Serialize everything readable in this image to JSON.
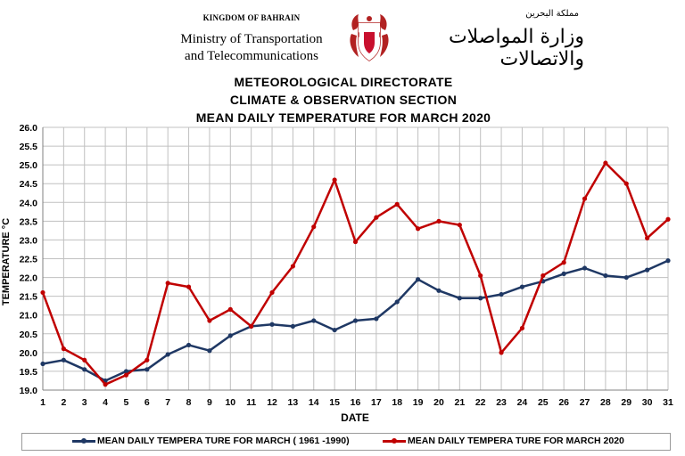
{
  "header": {
    "kingdom": "KINGDOM OF BAHRAIN",
    "ministry_line1": "Ministry of Transportation",
    "ministry_line2": "and Telecommunications",
    "arabic_small": "مملكة البحرين",
    "arabic_large": "وزارة المواصلات والاتصالات"
  },
  "titles": {
    "line1": "METEOROLOGICAL DIRECTORATE",
    "line2": "CLIMATE & OBSERVATION SECTION",
    "line3": "MEAN DAILY TEMPERATURE FOR MARCH 2020"
  },
  "colors": {
    "normal": "#1f3864",
    "year2020": "#c00000",
    "grid": "#c0c0c0"
  },
  "chart_data": {
    "type": "line",
    "title": "MEAN DAILY TEMPERATURE FOR MARCH 2020",
    "xlabel": "DATE",
    "ylabel": "TEMPERATURE °C",
    "x": [
      1,
      2,
      3,
      4,
      5,
      6,
      7,
      8,
      9,
      10,
      11,
      12,
      13,
      14,
      15,
      16,
      17,
      18,
      19,
      20,
      21,
      22,
      23,
      24,
      25,
      26,
      27,
      28,
      29,
      30,
      31
    ],
    "ylim": [
      19.0,
      26.0
    ],
    "yticks": [
      "19.0",
      "19.5",
      "20.0",
      "20.5",
      "21.0",
      "21.5",
      "22.0",
      "22.5",
      "23.0",
      "23.5",
      "24.0",
      "24.5",
      "25.0",
      "25.5",
      "26.0"
    ],
    "grid": true,
    "legend_position": "bottom",
    "series": [
      {
        "name": "MEAN DAILY TEMPERA TURE FOR MARCH ( 1961 -1990)",
        "color": "#1f3864",
        "values": [
          19.7,
          19.8,
          19.55,
          19.25,
          19.5,
          19.55,
          19.95,
          20.2,
          20.05,
          20.45,
          20.7,
          20.75,
          20.7,
          20.85,
          20.6,
          20.85,
          20.9,
          21.35,
          21.95,
          21.65,
          21.45,
          21.45,
          21.55,
          21.75,
          21.9,
          22.1,
          22.25,
          22.05,
          22.0,
          22.2,
          22.45
        ]
      },
      {
        "name": "MEAN DAILY TEMPERA TURE FOR MARCH 2020",
        "color": "#c00000",
        "values": [
          21.6,
          20.1,
          19.8,
          19.15,
          19.4,
          19.8,
          21.85,
          21.75,
          20.85,
          21.15,
          20.7,
          21.6,
          22.3,
          23.35,
          24.6,
          22.95,
          23.6,
          23.95,
          23.3,
          23.5,
          23.4,
          22.05,
          20.0,
          20.65,
          22.05,
          22.4,
          24.1,
          25.05,
          24.5,
          23.05,
          23.55
        ]
      }
    ]
  }
}
